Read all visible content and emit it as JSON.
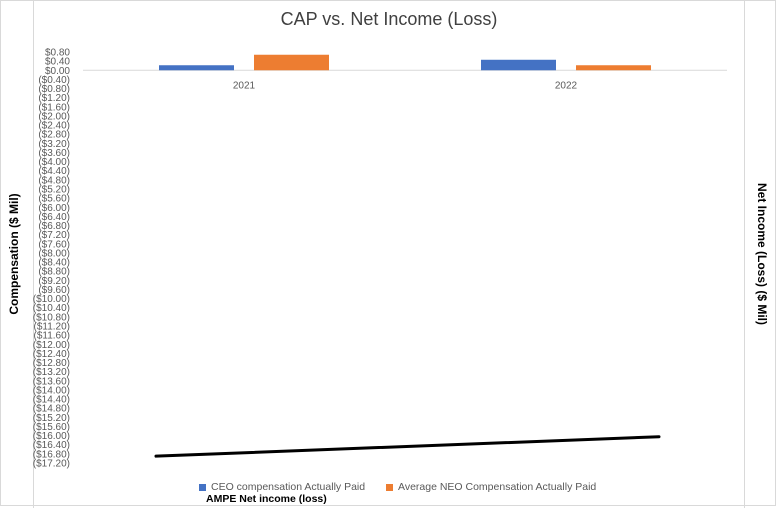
{
  "chart_data": {
    "type": "bar",
    "title": "CAP vs. Net Income (Loss)",
    "ylabel_left": "Compensation ($ Mil)",
    "ylabel_right": "Net Income (Loss) ($ Mil)",
    "categories": [
      "2021",
      "2022"
    ],
    "ylim": [
      -17.2,
      0.8
    ],
    "ytick_labels": [
      "$0.80",
      "$0.40",
      "$0.00",
      "($0.40)",
      "($0.80)",
      "($1.20)",
      "($1.60)",
      "($2.00)",
      "($2.40)",
      "($2.80)",
      "($3.20)",
      "($3.60)",
      "($4.00)",
      "($4.40)",
      "($4.80)",
      "($5.20)",
      "($5.60)",
      "($6.00)",
      "($6.40)",
      "($6.80)",
      "($7.20)",
      "($7.60)",
      "($8.00)",
      "($8.40)",
      "($8.80)",
      "($9.20)",
      "($9.60)",
      "($10.00)",
      "($10.40)",
      "($10.80)",
      "($11.20)",
      "($11.60)",
      "($12.00)",
      "($12.40)",
      "($12.80)",
      "($13.20)",
      "($13.60)",
      "($14.00)",
      "($14.40)",
      "($14.80)",
      "($15.20)",
      "($15.60)",
      "($16.00)",
      "($16.40)",
      "($16.80)",
      "($17.20)"
    ],
    "series": [
      {
        "name": "CEO compensation Actually Paid",
        "kind": "bar",
        "color": "#4472C4",
        "values": [
          0.22,
          0.46
        ]
      },
      {
        "name": "Average NEO Compensation Actually Paid",
        "kind": "bar",
        "color": "#ED7D31",
        "values": [
          0.68,
          0.22
        ]
      },
      {
        "name": "AMPE Net income (loss)",
        "kind": "line",
        "color": "#000000",
        "values": [
          -16.9,
          -16.05
        ]
      }
    ],
    "grid": false,
    "legend_position": "bottom"
  }
}
